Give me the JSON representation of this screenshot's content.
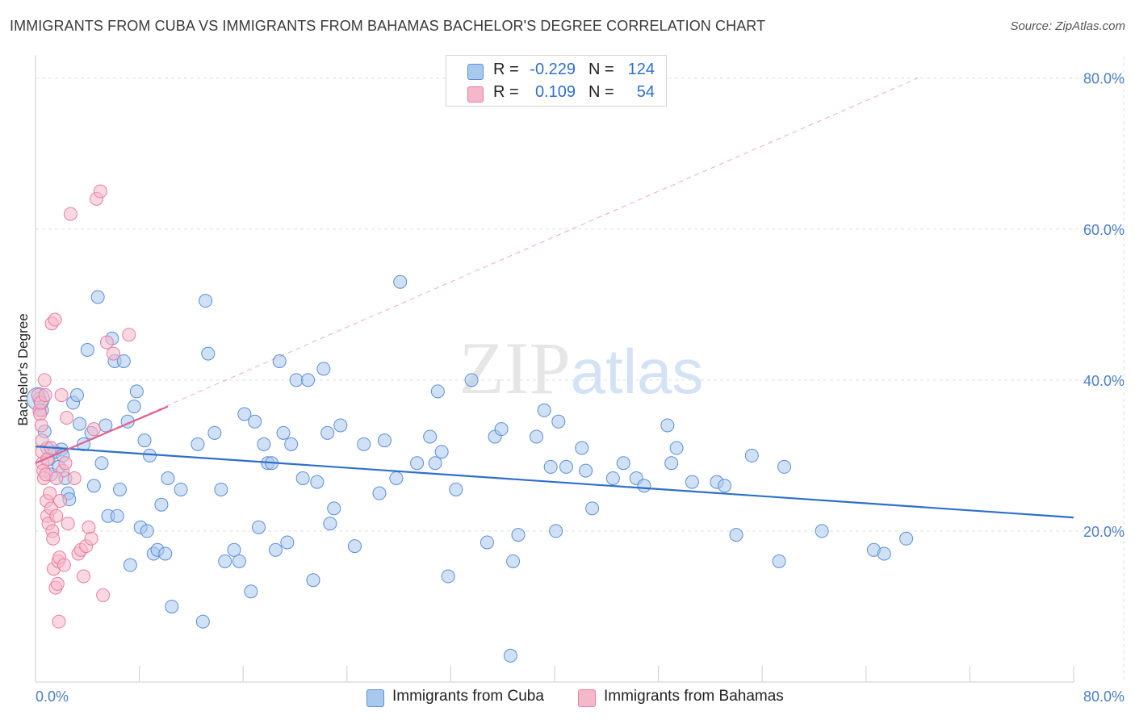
{
  "header": {
    "title": "IMMIGRANTS FROM CUBA VS IMMIGRANTS FROM BAHAMAS BACHELOR'S DEGREE CORRELATION CHART",
    "source": "Source: ZipAtlas.com"
  },
  "watermark": "ZIPatlas",
  "legend": {
    "r_label": "R =",
    "n_label": "N =",
    "series": [
      {
        "r": "-0.229",
        "n": "124"
      },
      {
        "r": "0.109",
        "n": "54"
      }
    ]
  },
  "colors": {
    "blue_fill": "#a9c8ee",
    "blue_stroke": "#5b8fd6",
    "blue_line": "#2f6fcb",
    "pink_fill": "#f5b8cb",
    "pink_stroke": "#e87da0",
    "pink_line": "#e0628e",
    "grid": "#dddddd",
    "tick_text": "#4a7fc8"
  },
  "chart_data": {
    "type": "scatter",
    "title": "IMMIGRANTS FROM CUBA VS IMMIGRANTS FROM BAHAMAS BACHELOR'S DEGREE CORRELATION CHART",
    "xlabel": "",
    "ylabel": "Bachelor's Degree",
    "xlim": [
      0,
      80
    ],
    "ylim": [
      0,
      82
    ],
    "x_tick_labels": [
      {
        "value": 0,
        "label": "0.0%"
      },
      {
        "value": 80,
        "label": "80.0%"
      }
    ],
    "y_tick_labels": [
      {
        "value": 20,
        "label": "20.0%"
      },
      {
        "value": 40,
        "label": "40.0%"
      },
      {
        "value": 60,
        "label": "60.0%"
      },
      {
        "value": 80,
        "label": "80.0%"
      }
    ],
    "legend_position": "top-center",
    "series": [
      {
        "name": "Immigrants from Cuba",
        "color": "#a9c8ee",
        "trend": {
          "x0": 0,
          "y0": 31.2,
          "x1": 80,
          "y1": 21.8
        },
        "points": [
          [
            0.3,
            37.5
          ],
          [
            0.5,
            36
          ],
          [
            0.7,
            33.2
          ],
          [
            0.9,
            31
          ],
          [
            1.0,
            29.5
          ],
          [
            1.2,
            27.5
          ],
          [
            1.5,
            30.5
          ],
          [
            1.8,
            28.5
          ],
          [
            2.0,
            30.8
          ],
          [
            2.1,
            30
          ],
          [
            2.3,
            27
          ],
          [
            2.5,
            25
          ],
          [
            2.6,
            24.2
          ],
          [
            2.9,
            37
          ],
          [
            3.2,
            38
          ],
          [
            3.4,
            34.2
          ],
          [
            3.7,
            31.5
          ],
          [
            4.0,
            44
          ],
          [
            4.3,
            33
          ],
          [
            4.5,
            26
          ],
          [
            4.8,
            51
          ],
          [
            5.1,
            29
          ],
          [
            5.4,
            34
          ],
          [
            5.6,
            22
          ],
          [
            5.9,
            45.5
          ],
          [
            6.1,
            42.5
          ],
          [
            6.3,
            22
          ],
          [
            6.5,
            25.5
          ],
          [
            6.8,
            42.5
          ],
          [
            7.1,
            34.5
          ],
          [
            7.3,
            15.5
          ],
          [
            7.6,
            36.5
          ],
          [
            7.8,
            38.5
          ],
          [
            8.1,
            20.5
          ],
          [
            8.4,
            32
          ],
          [
            8.6,
            20
          ],
          [
            8.8,
            30
          ],
          [
            9.1,
            17
          ],
          [
            9.4,
            17.5
          ],
          [
            9.7,
            23.5
          ],
          [
            10.0,
            17
          ],
          [
            10.2,
            27
          ],
          [
            10.5,
            10
          ],
          [
            11.2,
            25.5
          ],
          [
            12.5,
            31.5
          ],
          [
            12.9,
            8
          ],
          [
            13.1,
            50.5
          ],
          [
            13.3,
            43.5
          ],
          [
            13.8,
            33
          ],
          [
            14.3,
            25.5
          ],
          [
            14.6,
            16
          ],
          [
            15.3,
            17.5
          ],
          [
            15.7,
            16
          ],
          [
            16.1,
            35.5
          ],
          [
            16.6,
            12
          ],
          [
            16.9,
            34.5
          ],
          [
            17.2,
            20.5
          ],
          [
            17.6,
            31.5
          ],
          [
            17.9,
            29
          ],
          [
            18.2,
            29
          ],
          [
            18.5,
            17.5
          ],
          [
            18.8,
            42.5
          ],
          [
            19.1,
            33
          ],
          [
            19.4,
            18.5
          ],
          [
            19.7,
            31.5
          ],
          [
            20.1,
            40
          ],
          [
            20.6,
            27
          ],
          [
            21.0,
            40
          ],
          [
            21.4,
            13.5
          ],
          [
            21.7,
            26.5
          ],
          [
            22.2,
            41.5
          ],
          [
            22.5,
            33
          ],
          [
            22.7,
            21
          ],
          [
            23.0,
            23
          ],
          [
            23.5,
            34
          ],
          [
            24.6,
            18
          ],
          [
            25.3,
            31.5
          ],
          [
            26.5,
            25
          ],
          [
            26.9,
            32
          ],
          [
            27.8,
            27
          ],
          [
            28.1,
            53
          ],
          [
            29.4,
            29
          ],
          [
            30.4,
            32.5
          ],
          [
            30.8,
            29
          ],
          [
            31.0,
            38.5
          ],
          [
            31.3,
            30.5
          ],
          [
            31.8,
            14
          ],
          [
            32.4,
            25.5
          ],
          [
            33.6,
            40
          ],
          [
            34.8,
            18.5
          ],
          [
            35.4,
            32.5
          ],
          [
            35.9,
            33.5
          ],
          [
            36.6,
            3.5
          ],
          [
            36.8,
            16
          ],
          [
            37.2,
            19.5
          ],
          [
            38.6,
            32.5
          ],
          [
            39.2,
            36
          ],
          [
            39.7,
            28.5
          ],
          [
            40.1,
            20
          ],
          [
            40.3,
            34.5
          ],
          [
            40.9,
            28.5
          ],
          [
            42.1,
            31
          ],
          [
            42.4,
            28
          ],
          [
            42.9,
            23
          ],
          [
            44.5,
            27
          ],
          [
            45.3,
            29
          ],
          [
            46.3,
            27
          ],
          [
            46.9,
            26
          ],
          [
            48.7,
            34
          ],
          [
            49.0,
            29
          ],
          [
            49.4,
            31
          ],
          [
            50.6,
            26.5
          ],
          [
            52.5,
            26.5
          ],
          [
            53.1,
            26
          ],
          [
            54.0,
            19.5
          ],
          [
            55.2,
            30
          ],
          [
            57.3,
            16
          ],
          [
            57.7,
            28.5
          ],
          [
            60.6,
            20
          ],
          [
            64.6,
            17.5
          ],
          [
            65.4,
            17
          ],
          [
            67.1,
            19
          ]
        ]
      },
      {
        "name": "Immigrants from Bahamas",
        "color": "#f5b8cb",
        "trend": {
          "x0": 0,
          "y0": 29.0,
          "x1": 10.2,
          "y1": 36.5
        },
        "trend_extended": {
          "x0": 0,
          "y0": 29.0,
          "x1": 68.0,
          "y1": 80.0
        },
        "points": [
          [
            0.2,
            38
          ],
          [
            0.3,
            36
          ],
          [
            0.35,
            35.5
          ],
          [
            0.4,
            37
          ],
          [
            0.45,
            34
          ],
          [
            0.5,
            32
          ],
          [
            0.5,
            30.5
          ],
          [
            0.55,
            29
          ],
          [
            0.6,
            28
          ],
          [
            0.65,
            27
          ],
          [
            0.7,
            40
          ],
          [
            0.75,
            38
          ],
          [
            0.8,
            27.5
          ],
          [
            0.85,
            24
          ],
          [
            0.9,
            22
          ],
          [
            1.0,
            21
          ],
          [
            1.1,
            25
          ],
          [
            1.2,
            23
          ],
          [
            1.25,
            47.5
          ],
          [
            1.3,
            20
          ],
          [
            1.35,
            19
          ],
          [
            1.4,
            15
          ],
          [
            1.5,
            48
          ],
          [
            1.55,
            12.5
          ],
          [
            1.6,
            22
          ],
          [
            1.7,
            13
          ],
          [
            1.75,
            16
          ],
          [
            1.8,
            8
          ],
          [
            1.85,
            16.5
          ],
          [
            1.9,
            24
          ],
          [
            2.0,
            38
          ],
          [
            2.1,
            28
          ],
          [
            2.2,
            15.5
          ],
          [
            2.3,
            29
          ],
          [
            2.5,
            21
          ],
          [
            2.7,
            62
          ],
          [
            3.0,
            27
          ],
          [
            3.3,
            17
          ],
          [
            3.5,
            17.5
          ],
          [
            3.7,
            14
          ],
          [
            3.9,
            18
          ],
          [
            4.1,
            20.5
          ],
          [
            4.3,
            19
          ],
          [
            4.5,
            33.5
          ],
          [
            4.7,
            64
          ],
          [
            5.0,
            65
          ],
          [
            5.2,
            11.5
          ],
          [
            5.5,
            45
          ],
          [
            6.0,
            43.5
          ],
          [
            7.2,
            46
          ],
          [
            0.9,
            29.5
          ],
          [
            1.2,
            31
          ],
          [
            1.6,
            27
          ],
          [
            2.4,
            35
          ]
        ]
      }
    ]
  }
}
